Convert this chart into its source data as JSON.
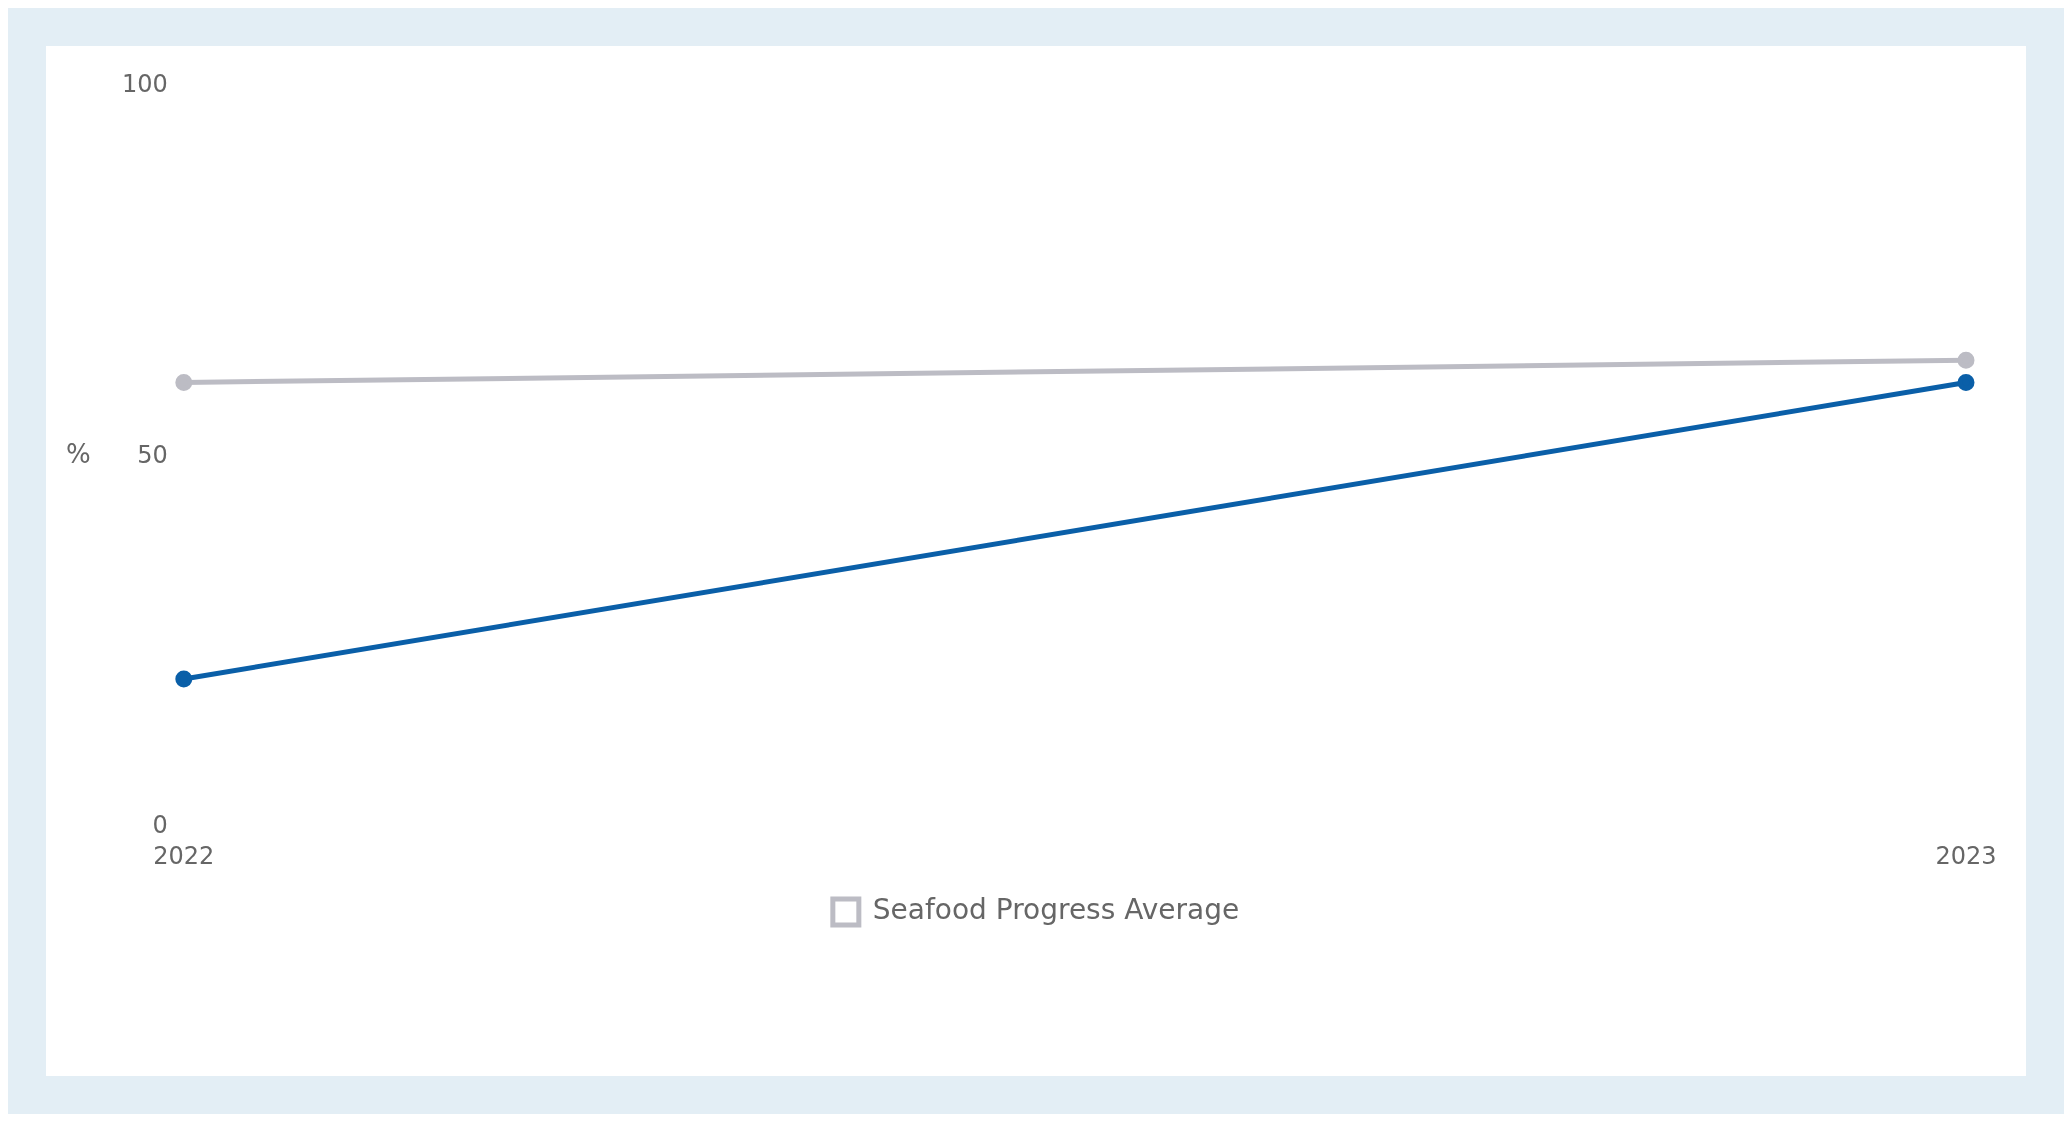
{
  "chart_data": {
    "type": "line",
    "ylabel": "%",
    "categories": [
      "2022",
      "2023"
    ],
    "ylim": [
      0,
      100
    ],
    "yticks": [
      0,
      50,
      100
    ],
    "grid": false,
    "legend": "bottom",
    "marker": "circle",
    "line_style": "solid",
    "series": [
      {
        "color": "#0a5fa8",
        "values": [
          20,
          60
        ]
      },
      {
        "name": "Seafood Progress Average",
        "color": "#bcbcc4",
        "values": [
          60,
          63
        ]
      }
    ]
  }
}
